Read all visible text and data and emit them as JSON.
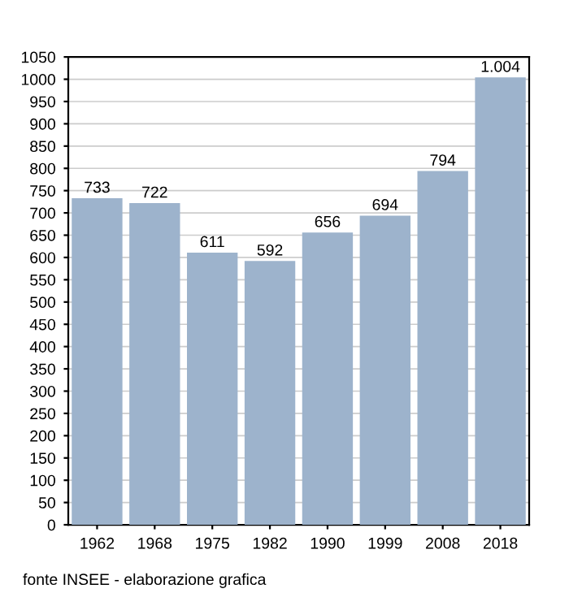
{
  "chart_data": {
    "type": "bar",
    "categories": [
      "1962",
      "1968",
      "1975",
      "1982",
      "1990",
      "1999",
      "2008",
      "2018"
    ],
    "values": [
      733,
      722,
      611,
      592,
      656,
      694,
      794,
      1004
    ],
    "value_labels": [
      "733",
      "722",
      "611",
      "592",
      "656",
      "694",
      "794",
      "1.004"
    ],
    "color": "#9db3cc",
    "ylim": [
      0,
      1050
    ],
    "yticks": [
      0,
      50,
      100,
      150,
      200,
      250,
      300,
      350,
      400,
      450,
      500,
      550,
      600,
      650,
      700,
      750,
      800,
      850,
      900,
      950,
      1000,
      1050
    ],
    "grid": "y",
    "annotations": [
      "fonte INSEE - elaborazione grafica"
    ]
  }
}
